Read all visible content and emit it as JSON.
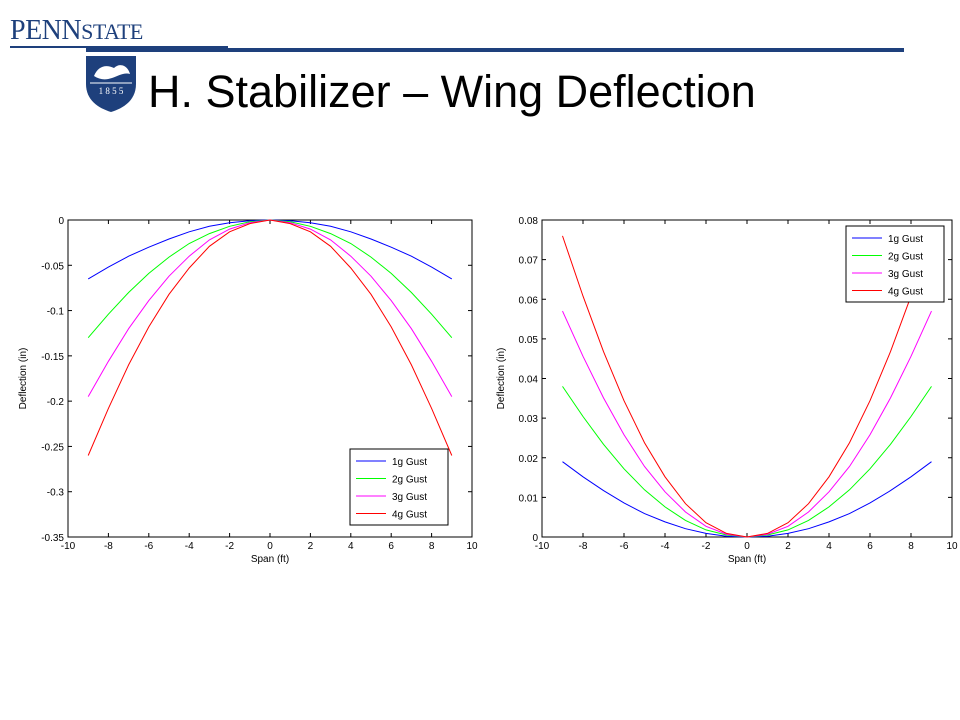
{
  "header": {
    "brand_main": "PENN",
    "brand_second": "STATE",
    "seal_text": "1 8 5 5",
    "title": "H. Stabilizer – Wing Deflection"
  },
  "colors": {
    "brand": "#1e407c",
    "series": [
      "#0000ff",
      "#00ff00",
      "#ff00ff",
      "#ff0000"
    ]
  },
  "chart_data": [
    {
      "type": "line",
      "xlabel": "Span (ft)",
      "ylabel": "Deflection (in)",
      "xlim": [
        -10,
        10
      ],
      "ylim": [
        -0.35,
        0
      ],
      "xticks": [
        "-10",
        "-8",
        "-6",
        "-4",
        "-2",
        "0",
        "2",
        "4",
        "6",
        "8",
        "10"
      ],
      "yticks": [
        "0",
        "-0.05",
        "-0.1",
        "-0.15",
        "-0.2",
        "-0.25",
        "-0.3",
        "-0.35"
      ],
      "legend_position": "bottom-right",
      "grid": false,
      "x": [
        -9,
        -8,
        -7,
        -6,
        -5,
        -4,
        -3,
        -2,
        -1,
        0,
        1,
        2,
        3,
        4,
        5,
        6,
        7,
        8,
        9
      ],
      "series": [
        {
          "name": "1g Gust",
          "color": "#0000ff",
          "values": [
            -0.065,
            -0.052,
            -0.04,
            -0.03,
            -0.021,
            -0.013,
            -0.007,
            -0.003,
            -0.0008,
            0,
            -0.0008,
            -0.003,
            -0.007,
            -0.013,
            -0.021,
            -0.03,
            -0.04,
            -0.052,
            -0.065
          ]
        },
        {
          "name": "2g Gust",
          "color": "#00ff00",
          "values": [
            -0.13,
            -0.104,
            -0.08,
            -0.059,
            -0.041,
            -0.026,
            -0.015,
            -0.007,
            -0.002,
            0,
            -0.002,
            -0.007,
            -0.015,
            -0.026,
            -0.041,
            -0.059,
            -0.08,
            -0.104,
            -0.13
          ]
        },
        {
          "name": "3g Gust",
          "color": "#ff00ff",
          "values": [
            -0.195,
            -0.156,
            -0.12,
            -0.089,
            -0.062,
            -0.04,
            -0.022,
            -0.01,
            -0.003,
            0,
            -0.003,
            -0.01,
            -0.022,
            -0.04,
            -0.062,
            -0.089,
            -0.12,
            -0.156,
            -0.195
          ]
        },
        {
          "name": "4g Gust",
          "color": "#ff0000",
          "values": [
            -0.26,
            -0.208,
            -0.16,
            -0.118,
            -0.082,
            -0.053,
            -0.029,
            -0.013,
            -0.004,
            0,
            -0.004,
            -0.013,
            -0.029,
            -0.053,
            -0.082,
            -0.118,
            -0.16,
            -0.208,
            -0.26
          ]
        }
      ]
    },
    {
      "type": "line",
      "xlabel": "Span (ft)",
      "ylabel": "Deflection (in)",
      "xlim": [
        -10,
        10
      ],
      "ylim": [
        0,
        0.08
      ],
      "xticks": [
        "-10",
        "-8",
        "-6",
        "-4",
        "-2",
        "0",
        "2",
        "4",
        "6",
        "8",
        "10"
      ],
      "yticks": [
        "0",
        "0.01",
        "0.02",
        "0.03",
        "0.04",
        "0.05",
        "0.06",
        "0.07",
        "0.08"
      ],
      "legend_position": "top-right",
      "grid": false,
      "x": [
        -9,
        -8,
        -7,
        -6,
        -5,
        -4,
        -3,
        -2,
        -1,
        0,
        1,
        2,
        3,
        4,
        5,
        6,
        7,
        8,
        9
      ],
      "series": [
        {
          "name": "1g Gust",
          "color": "#0000ff",
          "values": [
            0.019,
            0.0152,
            0.0117,
            0.0086,
            0.0059,
            0.0038,
            0.0021,
            0.0009,
            0.0002,
            0,
            0.0002,
            0.0009,
            0.0021,
            0.0038,
            0.0059,
            0.0086,
            0.0117,
            0.0152,
            0.019
          ]
        },
        {
          "name": "2g Gust",
          "color": "#00ff00",
          "values": [
            0.038,
            0.0304,
            0.0234,
            0.0172,
            0.0119,
            0.0076,
            0.0042,
            0.0018,
            0.0005,
            0,
            0.0005,
            0.0018,
            0.0042,
            0.0076,
            0.0119,
            0.0172,
            0.0234,
            0.0304,
            0.038
          ]
        },
        {
          "name": "3g Gust",
          "color": "#ff00ff",
          "values": [
            0.057,
            0.0456,
            0.0351,
            0.0258,
            0.0178,
            0.0114,
            0.0063,
            0.0027,
            0.0007,
            0,
            0.0007,
            0.0027,
            0.0063,
            0.0114,
            0.0178,
            0.0258,
            0.0351,
            0.0456,
            0.057
          ]
        },
        {
          "name": "4g Gust",
          "color": "#ff0000",
          "values": [
            0.076,
            0.0608,
            0.0468,
            0.0344,
            0.0238,
            0.0152,
            0.0084,
            0.0036,
            0.0009,
            0,
            0.0009,
            0.0036,
            0.0084,
            0.0152,
            0.0238,
            0.0344,
            0.0468,
            0.0608,
            0.076
          ]
        }
      ]
    }
  ]
}
